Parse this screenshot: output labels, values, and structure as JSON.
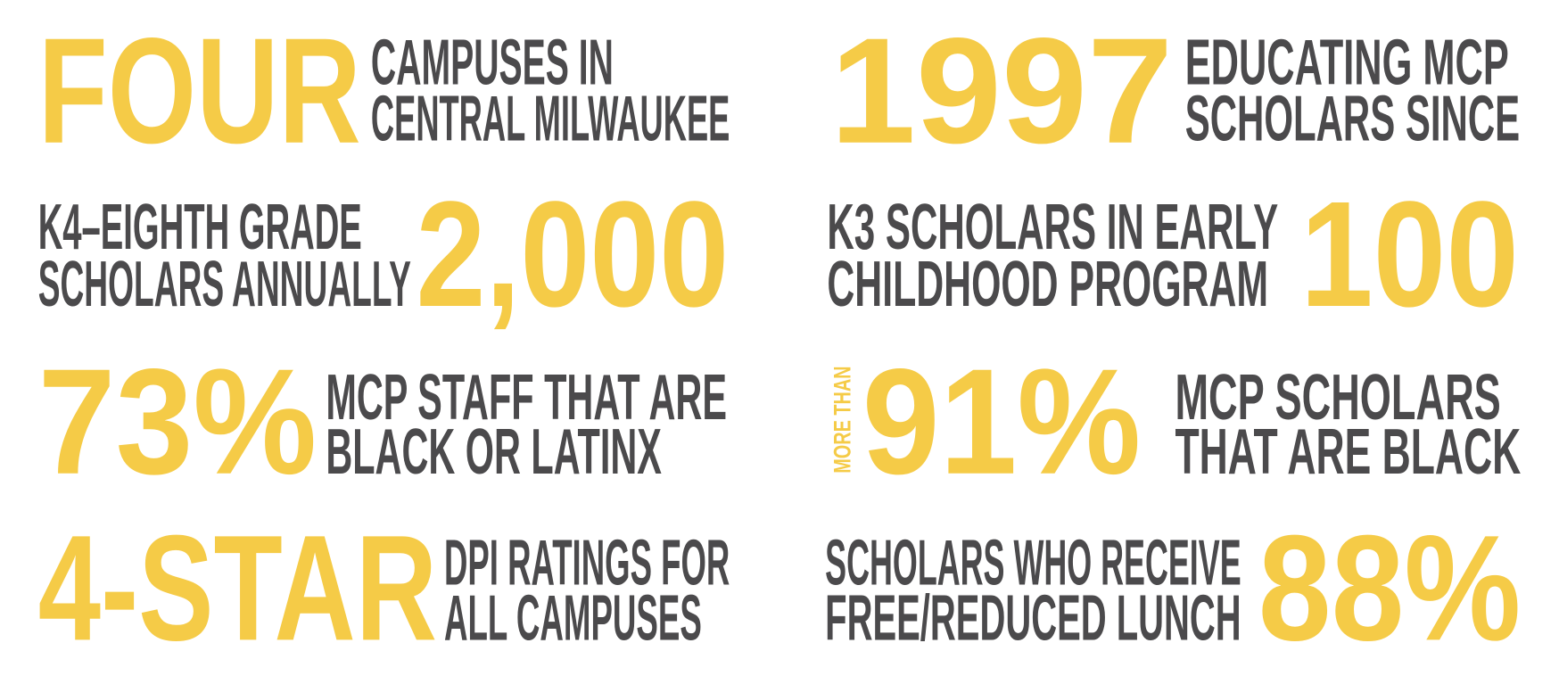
{
  "stats": [
    {
      "big": "FOUR",
      "lines": [
        "CAMPUSES IN",
        "CENTRAL MILWAUKEE"
      ]
    },
    {
      "big": "1997",
      "lines": [
        "EDUCATING MCP",
        "SCHOLARS SINCE"
      ]
    },
    {
      "big": "2,000",
      "lines": [
        "K4–EIGHTH GRADE",
        "SCHOLARS ANNUALLY"
      ]
    },
    {
      "big": "100",
      "lines": [
        "K3 SCHOLARS IN EARLY",
        "CHILDHOOD PROGRAM"
      ]
    },
    {
      "big": "73%",
      "lines": [
        "MCP STAFF THAT ARE",
        "BLACK OR LATINX"
      ]
    },
    {
      "prefix": "MORE THAN",
      "big": "91%",
      "lines": [
        "MCP SCHOLARS",
        "THAT ARE BLACK"
      ]
    },
    {
      "big": "4-STAR",
      "lines": [
        "DPI RATINGS FOR",
        "ALL CAMPUSES"
      ]
    },
    {
      "big": "88%",
      "lines": [
        "SCHOLARS WHO RECEIVE",
        "FREE/REDUCED LUNCH"
      ]
    }
  ]
}
